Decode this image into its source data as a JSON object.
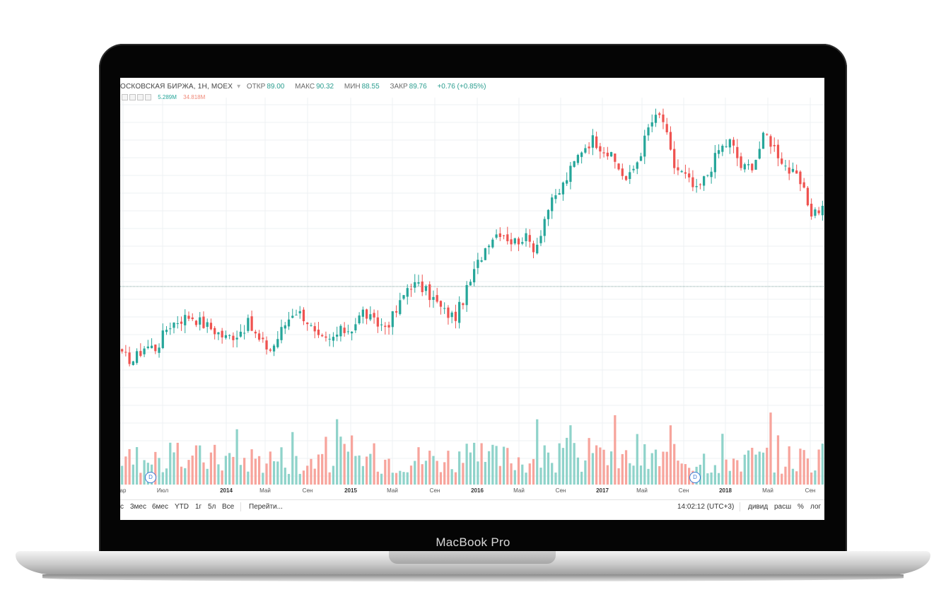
{
  "device": {
    "label": "MacBook Pro"
  },
  "header": {
    "symbol": "ОСКОВСКАЯ БИРЖА, 1Н, МОЕХ",
    "open_label": "ОТКР",
    "open_value": "89.00",
    "high_label": "МАКС",
    "high_value": "90.32",
    "low_label": "МИН",
    "low_value": "88.55",
    "close_label": "ЗАКР",
    "close_value": "89.76",
    "change": "+0.76 (+0.85%)"
  },
  "volume_legend": {
    "up": "5.289M",
    "down": "34.818M"
  },
  "colors": {
    "up": "#26a69a",
    "down": "#ef5350",
    "vol_up": "#8fd3ca",
    "vol_down": "#f7a49c",
    "grid": "#eef0f3",
    "hline": "#4f7f7a"
  },
  "x_axis": {
    "labels": [
      {
        "text": "ар",
        "year": false
      },
      {
        "text": "Июл",
        "year": false
      },
      {
        "text": "2014",
        "year": true
      },
      {
        "text": "Май",
        "year": false
      },
      {
        "text": "Сен",
        "year": false
      },
      {
        "text": "2015",
        "year": true
      },
      {
        "text": "Май",
        "year": false
      },
      {
        "text": "Сен",
        "year": false
      },
      {
        "text": "2016",
        "year": true
      },
      {
        "text": "Май",
        "year": false
      },
      {
        "text": "Сен",
        "year": false
      },
      {
        "text": "2017",
        "year": true
      },
      {
        "text": "Май",
        "year": false
      },
      {
        "text": "Сен",
        "year": false
      },
      {
        "text": "2018",
        "year": true
      },
      {
        "text": "Май",
        "year": false
      },
      {
        "text": "Сен",
        "year": false
      }
    ]
  },
  "markers": {
    "dividend_label": "D"
  },
  "toolbar": {
    "ranges": [
      "с",
      "3мес",
      "6мес",
      "YTD",
      "1г",
      "5л",
      "Все"
    ],
    "goto": "Перейти...",
    "clock": "14:02:12 (UTC+3)",
    "dividends": "дивид",
    "splits": "расш",
    "percent": "%",
    "log": "лог"
  },
  "chart_data": {
    "type": "candlestick",
    "x_range": [
      "2013-03",
      "2018-10"
    ],
    "guide_close": [
      26,
      24,
      31,
      30,
      41,
      44,
      46,
      42,
      39,
      35,
      37,
      42,
      33,
      29,
      40,
      49,
      45,
      34,
      33,
      38,
      40,
      48,
      42,
      41,
      49,
      62,
      60,
      55,
      48,
      45,
      58,
      72,
      84,
      88,
      82,
      85,
      79,
      98,
      106,
      117,
      128,
      133,
      128,
      121,
      112,
      124,
      141,
      145,
      120,
      115,
      107,
      116,
      128,
      132,
      118,
      121,
      136,
      127,
      118,
      112,
      97,
      99
    ]
  }
}
